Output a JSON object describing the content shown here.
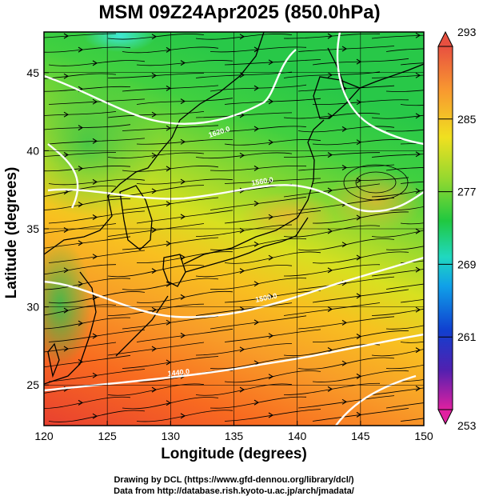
{
  "title": "MSM 09Z24Apr2025 (850.0hPa)",
  "axes": {
    "xlabel": "Longitude (degrees)",
    "ylabel": "Latitude  (degrees)",
    "x_ticks": [
      "120",
      "125",
      "130",
      "135",
      "140",
      "145",
      "150"
    ],
    "y_ticks": [
      "25",
      "30",
      "35",
      "40",
      "45"
    ],
    "xlim": [
      120,
      150
    ],
    "ylim": [
      22.4,
      47.6
    ]
  },
  "colorbar": {
    "labels": [
      "293",
      "285",
      "277",
      "269",
      "261",
      "253"
    ],
    "range": [
      253,
      293
    ],
    "colors": [
      "#e0209a",
      "#5020b0",
      "#1040d0",
      "#10a0e8",
      "#20d8c0",
      "#20c840",
      "#90d830",
      "#f0e020",
      "#f89830",
      "#e85040"
    ]
  },
  "contours": {
    "color": "#ffffff",
    "labels": [
      "1620.0",
      "1560.0",
      "1500.0",
      "1440.0"
    ]
  },
  "credits": {
    "line1": "Drawing by DCL (https://www.gfd-dennou.org/library/dcl/)",
    "line2": "Data from http://database.rish.kyoto-u.ac.jp/arch/jmadata/"
  },
  "chart_data": {
    "type": "heatmap",
    "title": "MSM 09Z24Apr2025 (850.0hPa)",
    "xlabel": "Longitude (degrees)",
    "ylabel": "Latitude  (degrees)",
    "xlim": [
      120,
      150
    ],
    "ylim": [
      22.4,
      47.6
    ],
    "grid": true,
    "colorbar_range": [
      253,
      293
    ],
    "colorbar_ticks": [
      293,
      285,
      277,
      269,
      261,
      253
    ],
    "contour_labels": [
      1620.0,
      1560.0,
      1500.0,
      1440.0
    ]
  }
}
